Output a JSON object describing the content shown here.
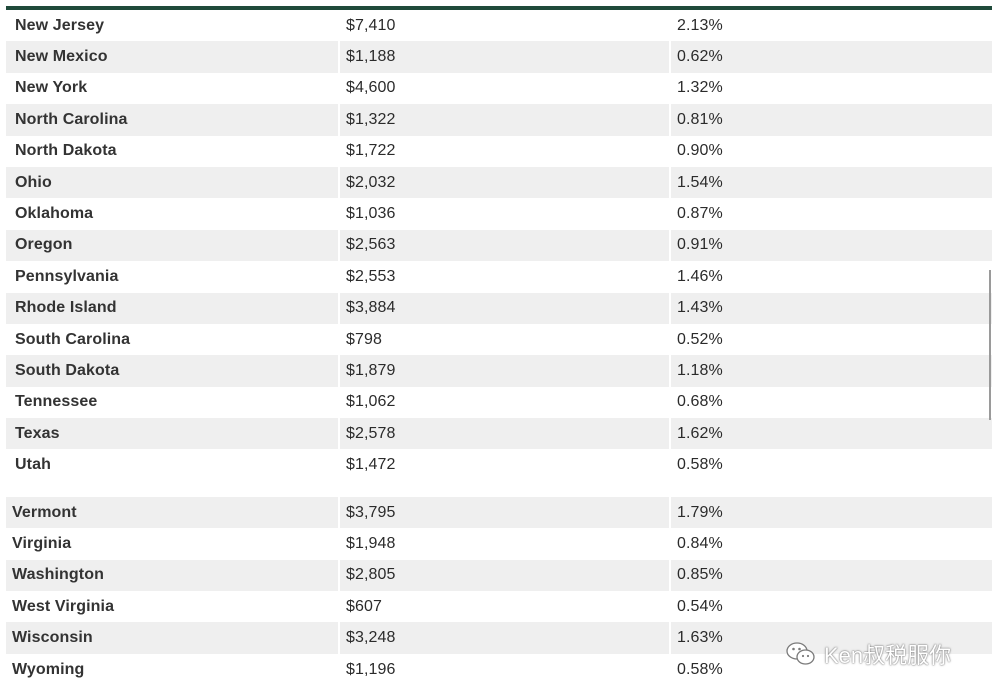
{
  "table": {
    "rows": [
      {
        "state": "New Jersey",
        "tax": "$7,410",
        "rate": "2.13%"
      },
      {
        "state": "New Mexico",
        "tax": "$1,188",
        "rate": "0.62%"
      },
      {
        "state": "New York",
        "tax": "$4,600",
        "rate": "1.32%"
      },
      {
        "state": "North Carolina",
        "tax": "$1,322",
        "rate": "0.81%"
      },
      {
        "state": "North Dakota",
        "tax": "$1,722",
        "rate": "0.90%"
      },
      {
        "state": "Ohio",
        "tax": "$2,032",
        "rate": "1.54%"
      },
      {
        "state": "Oklahoma",
        "tax": "$1,036",
        "rate": "0.87%"
      },
      {
        "state": "Oregon",
        "tax": "$2,563",
        "rate": "0.91%"
      },
      {
        "state": "Pennsylvania",
        "tax": "$2,553",
        "rate": "1.46%"
      },
      {
        "state": "Rhode Island",
        "tax": "$3,884",
        "rate": "1.43%"
      },
      {
        "state": "South Carolina",
        "tax": "$798",
        "rate": "0.52%"
      },
      {
        "state": "South Dakota",
        "tax": "$1,879",
        "rate": "1.18%"
      },
      {
        "state": "Tennessee",
        "tax": "$1,062",
        "rate": "0.68%"
      },
      {
        "state": "Texas",
        "tax": "$2,578",
        "rate": "1.62%"
      },
      {
        "state": "Utah",
        "tax": "$1,472",
        "rate": "0.58%"
      },
      {
        "state": "Vermont",
        "tax": "$3,795",
        "rate": "1.79%"
      },
      {
        "state": "Virginia",
        "tax": "$1,948",
        "rate": "0.84%"
      },
      {
        "state": "Washington",
        "tax": "$2,805",
        "rate": "0.85%"
      },
      {
        "state": "West Virginia",
        "tax": "$607",
        "rate": "0.54%"
      },
      {
        "state": "Wisconsin",
        "tax": "$3,248",
        "rate": "1.63%"
      },
      {
        "state": "Wyoming",
        "tax": "$1,196",
        "rate": "0.58%"
      }
    ]
  },
  "watermark": {
    "text": "Ken叔税服你",
    "icon": "wechat-icon"
  },
  "colors": {
    "header_rule": "#1f4a3a",
    "row_alt": "#efefef",
    "text": "#2b2b2b"
  }
}
